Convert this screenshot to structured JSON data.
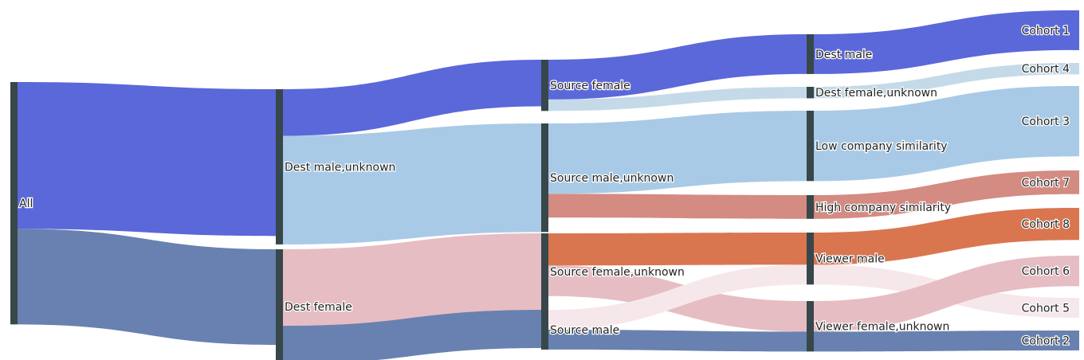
{
  "colors": {
    "node_dark": "#37474a",
    "blue": "#5b68d9",
    "lightblue": "#a9cae6",
    "paleblue": "#c4dae8",
    "slate": "#6881b0",
    "salmon": "#d38b82",
    "orange": "#d97650",
    "pink": "#e6bdc3",
    "palepink": "#f6e7eb",
    "cohort3": "#a9cae6",
    "cohort6": "#e6bdc3"
  },
  "nodes": [
    {
      "id": "all",
      "label": "All",
      "color_key": "node_dark"
    },
    {
      "id": "dest_male_unknown",
      "label": "Dest male,unknown",
      "color_key": "node_dark"
    },
    {
      "id": "dest_female",
      "label": "Dest female",
      "color_key": "node_dark"
    },
    {
      "id": "source_female",
      "label": "Source female",
      "color_key": "node_dark"
    },
    {
      "id": "source_male_unknown",
      "label": "Source male,unknown",
      "color_key": "node_dark"
    },
    {
      "id": "source_female_unknown",
      "label": "Source female,unknown",
      "color_key": "node_dark"
    },
    {
      "id": "source_male",
      "label": "Source male",
      "color_key": "node_dark"
    },
    {
      "id": "dest_male",
      "label": "Dest male",
      "color_key": "node_dark"
    },
    {
      "id": "dest_female_unknown",
      "label": "Dest female,unknown",
      "color_key": "node_dark"
    },
    {
      "id": "low_company_similarity",
      "label": "Low company similarity",
      "color_key": "node_dark"
    },
    {
      "id": "high_company_similarity",
      "label": "High company similarity",
      "color_key": "node_dark"
    },
    {
      "id": "viewer_male",
      "label": "Viewer male",
      "color_key": "node_dark"
    },
    {
      "id": "viewer_female_unknown",
      "label": "Viewer female,unknown",
      "color_key": "node_dark"
    },
    {
      "id": "cohort1",
      "label": "Cohort 1",
      "color_key": "blue"
    },
    {
      "id": "cohort4",
      "label": "Cohort 4",
      "color_key": "paleblue"
    },
    {
      "id": "cohort3",
      "label": "Cohort 3",
      "color_key": "cohort3"
    },
    {
      "id": "cohort7",
      "label": "Cohort 7",
      "color_key": "salmon"
    },
    {
      "id": "cohort8",
      "label": "Cohort 8",
      "color_key": "orange"
    },
    {
      "id": "cohort6",
      "label": "Cohort 6",
      "color_key": "cohort6"
    },
    {
      "id": "cohort5",
      "label": "Cohort 5",
      "color_key": "palepink"
    },
    {
      "id": "cohort2",
      "label": "Cohort 2",
      "color_key": "slate"
    }
  ],
  "links": [
    {
      "source": "all",
      "target": "dest_male_unknown",
      "value": 192,
      "color_key": "blue"
    },
    {
      "source": "all",
      "target": "dest_female",
      "value": 125,
      "color_key": "slate"
    },
    {
      "source": "dest_male_unknown",
      "target": "source_female",
      "value": 61,
      "color_key": "blue"
    },
    {
      "source": "dest_male_unknown",
      "target": "source_male_unknown",
      "value": 142,
      "color_key": "lightblue"
    },
    {
      "source": "dest_female",
      "target": "source_female_unknown",
      "value": 100,
      "color_key": "pink"
    },
    {
      "source": "dest_female",
      "target": "source_male",
      "value": 50,
      "color_key": "slate"
    },
    {
      "source": "source_female",
      "target": "dest_male",
      "value": 52,
      "color_key": "blue"
    },
    {
      "source": "source_female",
      "target": "dest_female_unknown",
      "value": 15,
      "color_key": "paleblue"
    },
    {
      "source": "source_male_unknown",
      "target": "low_company_similarity",
      "value": 92,
      "color_key": "lightblue"
    },
    {
      "source": "source_male_unknown",
      "target": "high_company_similarity",
      "value": 31,
      "color_key": "salmon"
    },
    {
      "source": "source_female_unknown",
      "target": "viewer_male",
      "value": 42,
      "color_key": "orange"
    },
    {
      "source": "source_female_unknown",
      "target": "viewer_female_unknown",
      "value": 40,
      "color_key": "pink"
    },
    {
      "source": "source_male",
      "target": "viewer_male",
      "value": 26,
      "color_key": "palepink"
    },
    {
      "source": "source_male",
      "target": "viewer_female_unknown",
      "value": 26,
      "color_key": "slate"
    },
    {
      "source": "dest_male",
      "target": "cohort1",
      "value": 52,
      "color_key": "blue"
    },
    {
      "source": "dest_female_unknown",
      "target": "cohort4",
      "value": 15,
      "color_key": "paleblue"
    },
    {
      "source": "low_company_similarity",
      "target": "cohort3",
      "value": 92,
      "color_key": "lightblue"
    },
    {
      "source": "high_company_similarity",
      "target": "cohort7",
      "value": 31,
      "color_key": "salmon"
    },
    {
      "source": "viewer_male",
      "target": "cohort8",
      "value": 42,
      "color_key": "orange"
    },
    {
      "source": "viewer_male",
      "target": "cohort5",
      "value": 26,
      "color_key": "palepink"
    },
    {
      "source": "viewer_female_unknown",
      "target": "cohort6",
      "value": 40,
      "color_key": "pink"
    },
    {
      "source": "viewer_female_unknown",
      "target": "cohort2",
      "value": 26,
      "color_key": "slate"
    }
  ]
}
